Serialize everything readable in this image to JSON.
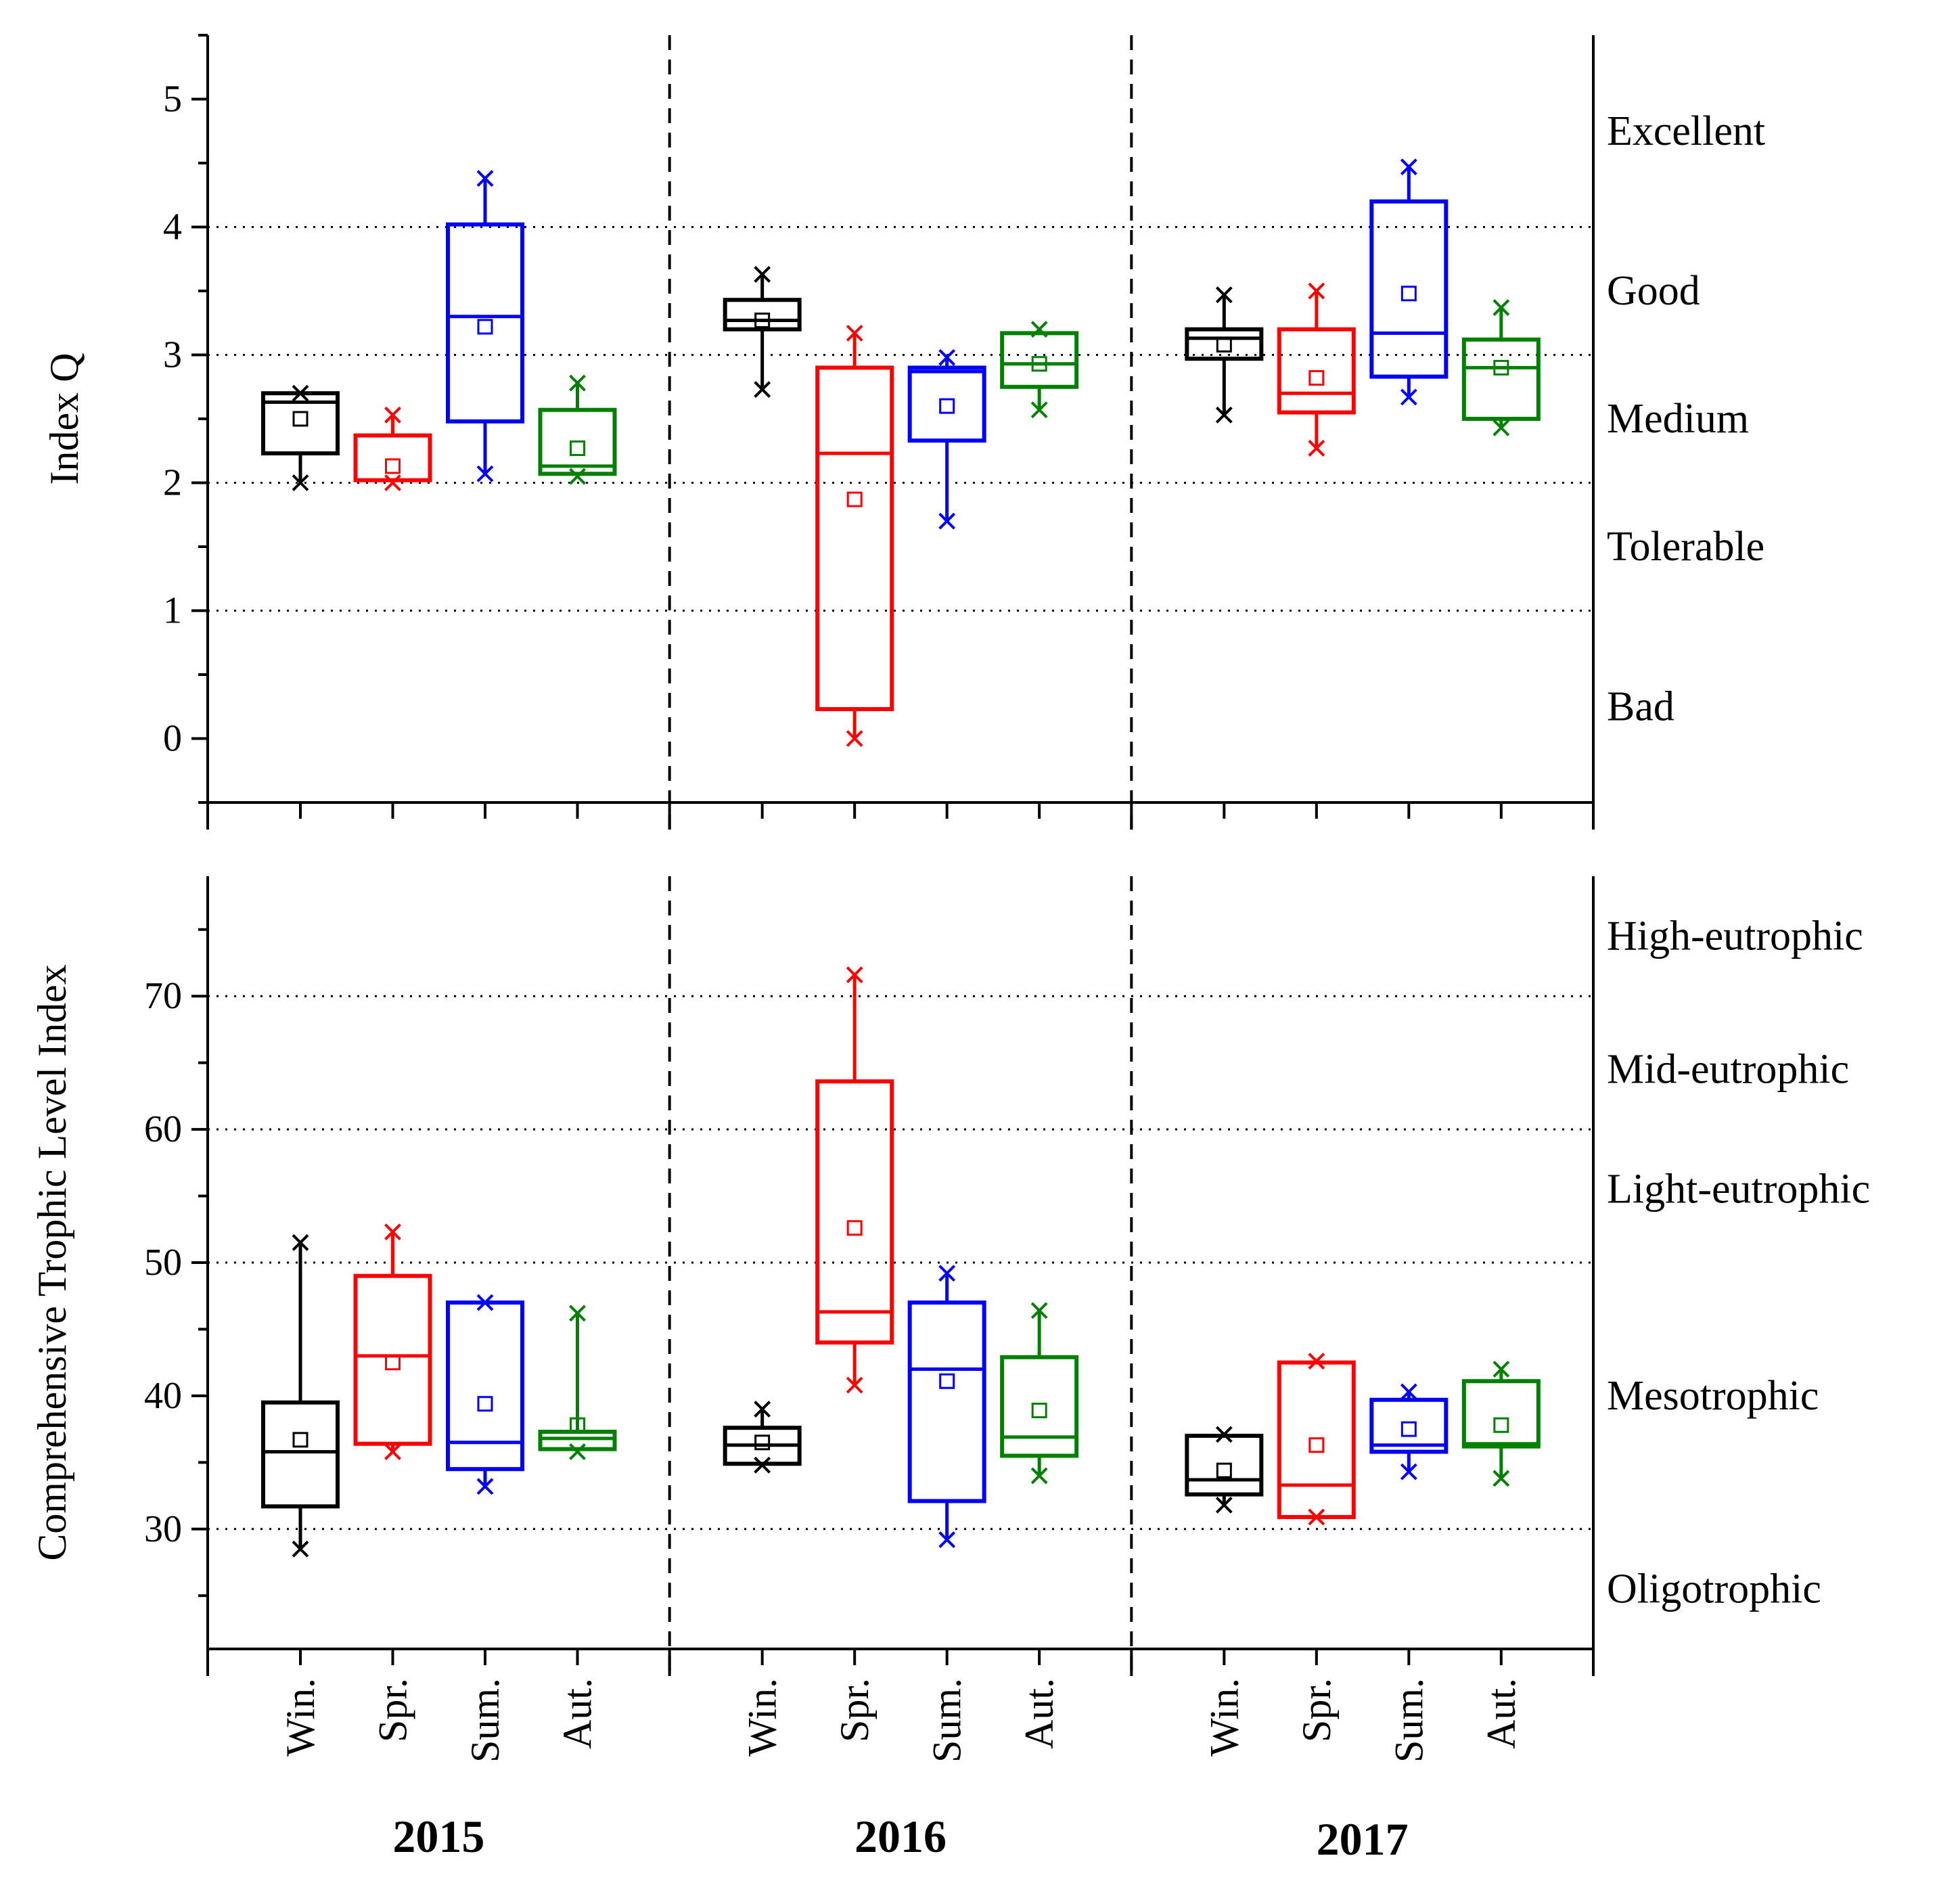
{
  "colors": {
    "Win.": "#000000",
    "Spr.": "#ff0000",
    "Sum.": "#0000ff",
    "Aut.": "#008000",
    "axis": "#000000"
  },
  "x_axis": {
    "season_labels": [
      "Win.",
      "Spr.",
      "Sum.",
      "Aut."
    ],
    "years": [
      "2015",
      "2016",
      "2017"
    ]
  },
  "chart_data": [
    {
      "type": "box",
      "id": "index-q",
      "ylabel": "Index Q",
      "ylim": [
        -0.5,
        5.5
      ],
      "yticks": [
        0,
        1,
        2,
        3,
        4,
        5
      ],
      "y_minor_step": 0.5,
      "class_thresholds": [
        1,
        2,
        3,
        4
      ],
      "class_labels": [
        {
          "label": "Excellent",
          "y": 4.75
        },
        {
          "label": "Good",
          "y": 3.5
        },
        {
          "label": "Medium",
          "y": 2.5
        },
        {
          "label": "Tolerable",
          "y": 1.5
        },
        {
          "label": "Bad",
          "y": 0.25
        }
      ],
      "groups": [
        {
          "year": "2015",
          "season": "Win.",
          "q1": 2.23,
          "median": 2.63,
          "q3": 2.7,
          "min": 2.0,
          "max": 2.7,
          "mean": 2.5,
          "x_marks": [
            2.0,
            2.7
          ]
        },
        {
          "year": "2015",
          "season": "Spr.",
          "q1": 2.02,
          "median": 2.02,
          "q3": 2.37,
          "min": 2.0,
          "max": 2.53,
          "mean": 2.13,
          "x_marks": [
            2.0,
            2.53
          ]
        },
        {
          "year": "2015",
          "season": "Sum.",
          "q1": 2.48,
          "median": 3.3,
          "q3": 4.02,
          "min": 2.07,
          "max": 4.38,
          "mean": 3.22,
          "x_marks": [
            2.07,
            4.38
          ]
        },
        {
          "year": "2015",
          "season": "Aut.",
          "q1": 2.07,
          "median": 2.13,
          "q3": 2.57,
          "min": 2.05,
          "max": 2.78,
          "mean": 2.27,
          "x_marks": [
            2.05,
            2.78
          ]
        },
        {
          "year": "2016",
          "season": "Win.",
          "q1": 3.2,
          "median": 3.27,
          "q3": 3.43,
          "min": 2.73,
          "max": 3.63,
          "mean": 3.27,
          "x_marks": [
            2.73,
            3.63
          ]
        },
        {
          "year": "2016",
          "season": "Spr.",
          "q1": 0.23,
          "median": 2.23,
          "q3": 2.9,
          "min": 0.0,
          "max": 3.17,
          "mean": 1.87,
          "x_marks": [
            0.0,
            3.17
          ]
        },
        {
          "year": "2016",
          "season": "Sum.",
          "q1": 2.33,
          "median": 2.87,
          "q3": 2.9,
          "min": 1.7,
          "max": 2.98,
          "mean": 2.6,
          "x_marks": [
            1.7,
            2.98
          ]
        },
        {
          "year": "2016",
          "season": "Aut.",
          "q1": 2.75,
          "median": 2.93,
          "q3": 3.17,
          "min": 2.57,
          "max": 3.2,
          "mean": 2.93,
          "x_marks": [
            2.57,
            3.2
          ]
        },
        {
          "year": "2017",
          "season": "Win.",
          "q1": 2.97,
          "median": 3.13,
          "q3": 3.2,
          "min": 2.53,
          "max": 3.47,
          "mean": 3.08,
          "x_marks": [
            2.53,
            3.47
          ]
        },
        {
          "year": "2017",
          "season": "Spr.",
          "q1": 2.55,
          "median": 2.7,
          "q3": 3.2,
          "min": 2.27,
          "max": 3.5,
          "mean": 2.82,
          "x_marks": [
            2.27,
            3.5
          ]
        },
        {
          "year": "2017",
          "season": "Sum.",
          "q1": 2.83,
          "median": 3.17,
          "q3": 4.2,
          "min": 2.67,
          "max": 4.47,
          "mean": 3.48,
          "x_marks": [
            2.67,
            4.47
          ]
        },
        {
          "year": "2017",
          "season": "Aut.",
          "q1": 2.5,
          "median": 2.9,
          "q3": 3.12,
          "min": 2.43,
          "max": 3.37,
          "mean": 2.9,
          "x_marks": [
            2.43,
            3.37
          ]
        }
      ]
    },
    {
      "type": "box",
      "id": "ctli",
      "ylabel": "Comprehensive Trophic Level Index",
      "ylim": [
        21,
        79
      ],
      "yticks": [
        30,
        40,
        50,
        60,
        70
      ],
      "y_minor_step": 5,
      "class_thresholds": [
        30,
        50,
        60,
        70
      ],
      "class_labels": [
        {
          "label": "High-eutrophic",
          "y": 74.5
        },
        {
          "label": "Mid-eutrophic",
          "y": 64.5
        },
        {
          "label": "Light-eutrophic",
          "y": 55.5
        },
        {
          "label": "Mesotrophic",
          "y": 40
        },
        {
          "label": "Oligotrophic",
          "y": 25.5
        }
      ],
      "groups": [
        {
          "year": "2015",
          "season": "Win.",
          "q1": 31.7,
          "median": 35.8,
          "q3": 39.5,
          "min": 28.5,
          "max": 51.5,
          "mean": 36.7,
          "x_marks": [
            28.5,
            51.5
          ]
        },
        {
          "year": "2015",
          "season": "Spr.",
          "q1": 36.4,
          "median": 43.0,
          "q3": 49.0,
          "min": 35.8,
          "max": 52.3,
          "mean": 42.5,
          "x_marks": [
            35.8,
            52.3
          ]
        },
        {
          "year": "2015",
          "season": "Sum.",
          "q1": 34.5,
          "median": 36.5,
          "q3": 47.0,
          "min": 33.2,
          "max": 47.0,
          "mean": 39.4,
          "x_marks": [
            33.2,
            47.0
          ]
        },
        {
          "year": "2015",
          "season": "Aut.",
          "q1": 36.0,
          "median": 36.8,
          "q3": 37.3,
          "min": 35.8,
          "max": 46.2,
          "mean": 37.8,
          "x_marks": [
            35.8,
            46.2
          ]
        },
        {
          "year": "2016",
          "season": "Win.",
          "q1": 34.9,
          "median": 36.3,
          "q3": 37.6,
          "min": 34.8,
          "max": 39.0,
          "mean": 36.5,
          "x_marks": [
            34.8,
            39.0
          ]
        },
        {
          "year": "2016",
          "season": "Spr.",
          "q1": 44.0,
          "median": 46.3,
          "q3": 63.6,
          "min": 40.8,
          "max": 71.6,
          "mean": 52.6,
          "x_marks": [
            40.8,
            71.6
          ]
        },
        {
          "year": "2016",
          "season": "Sum.",
          "q1": 32.1,
          "median": 42.0,
          "q3": 47.0,
          "min": 29.2,
          "max": 49.2,
          "mean": 41.1,
          "x_marks": [
            29.2,
            49.2
          ]
        },
        {
          "year": "2016",
          "season": "Aut.",
          "q1": 35.5,
          "median": 36.9,
          "q3": 42.9,
          "min": 34.0,
          "max": 46.4,
          "mean": 38.9,
          "x_marks": [
            34.0,
            46.4
          ]
        },
        {
          "year": "2017",
          "season": "Win.",
          "q1": 32.6,
          "median": 33.7,
          "q3": 37.0,
          "min": 31.8,
          "max": 37.1,
          "mean": 34.4,
          "x_marks": [
            31.8,
            37.1
          ]
        },
        {
          "year": "2017",
          "season": "Spr.",
          "q1": 30.9,
          "median": 33.3,
          "q3": 42.5,
          "min": 30.9,
          "max": 42.6,
          "mean": 36.3,
          "x_marks": [
            30.9,
            42.6
          ]
        },
        {
          "year": "2017",
          "season": "Sum.",
          "q1": 35.8,
          "median": 36.3,
          "q3": 39.7,
          "min": 34.3,
          "max": 40.3,
          "mean": 37.5,
          "x_marks": [
            34.3,
            40.3
          ]
        },
        {
          "year": "2017",
          "season": "Aut.",
          "q1": 36.2,
          "median": 36.4,
          "q3": 41.1,
          "min": 33.8,
          "max": 42.0,
          "mean": 37.8,
          "x_marks": [
            33.8,
            42.0
          ]
        }
      ]
    }
  ]
}
